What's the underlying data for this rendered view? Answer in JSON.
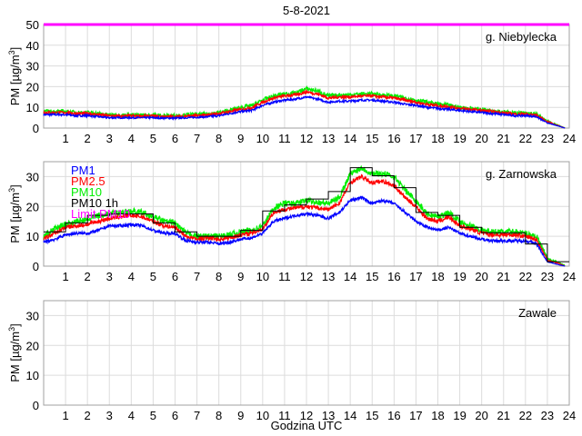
{
  "title": "5-8-2021",
  "xlabel": "Godzina UTC",
  "colors": {
    "PM1": "#0000ff",
    "PM2.5": "#ff0000",
    "PM10": "#00ee00",
    "PM10 1h": "#000000",
    "Limit PM10": "#ff00ff"
  },
  "legend": [
    "PM1",
    "PM2.5",
    "PM10",
    "PM10 1h",
    "Limit PM10"
  ],
  "chart_data": [
    {
      "type": "line",
      "station": "g. Niebylecka",
      "ylabel": "PM [µg/m3]",
      "xlim": [
        0,
        24
      ],
      "ylim": [
        0,
        50
      ],
      "x_ticks": [
        1,
        2,
        3,
        4,
        5,
        6,
        7,
        8,
        9,
        10,
        11,
        12,
        13,
        14,
        15,
        16,
        17,
        18,
        19,
        20,
        21,
        22,
        23,
        24
      ],
      "y_ticks": [
        0,
        10,
        20,
        30,
        40,
        50
      ],
      "grid": true,
      "limit_pm10": 50,
      "x": [
        0,
        0.5,
        1,
        1.5,
        2,
        2.5,
        3,
        3.5,
        4,
        4.5,
        5,
        5.5,
        6,
        6.5,
        7,
        7.5,
        8,
        8.5,
        9,
        9.5,
        10,
        10.5,
        11,
        11.5,
        12,
        12.5,
        13,
        13.5,
        14,
        14.5,
        15,
        15.5,
        16,
        16.5,
        17,
        17.5,
        18,
        18.5,
        19,
        19.5,
        20,
        20.5,
        21,
        21.5,
        22,
        22.5,
        23,
        23.5,
        23.8
      ],
      "series": [
        {
          "name": "PM1",
          "values": [
            6.5,
            6.5,
            6.5,
            6,
            6,
            5.5,
            5,
            5,
            5,
            5,
            5,
            4.8,
            4.8,
            5,
            5.2,
            5.5,
            6,
            7,
            8,
            8.5,
            11,
            12.5,
            13.5,
            14,
            15,
            14,
            12.5,
            13,
            13,
            13.5,
            13.5,
            13,
            12.5,
            11.5,
            11,
            10,
            9.5,
            9,
            8.5,
            8,
            7.5,
            7,
            6.5,
            6,
            6,
            5.5,
            2.5,
            1,
            0
          ]
        },
        {
          "name": "PM2.5",
          "values": [
            7.5,
            7.5,
            7.5,
            7,
            7,
            6.5,
            5.8,
            5.8,
            5.8,
            5.8,
            5.8,
            5.5,
            5.5,
            5.8,
            6,
            6.3,
            7,
            8,
            9,
            9.8,
            12.5,
            14.5,
            15.5,
            16,
            17.5,
            16.5,
            14.5,
            15,
            15,
            15.5,
            15.5,
            15,
            14.5,
            13.5,
            12.5,
            11.5,
            10.8,
            10.3,
            9.5,
            9,
            8.5,
            8,
            7.3,
            6.8,
            6.7,
            6.2,
            3,
            1.2,
            0
          ]
        },
        {
          "name": "PM10",
          "values": [
            8,
            8,
            8,
            7.5,
            7.5,
            7,
            6.3,
            6.3,
            6.3,
            6.3,
            6.3,
            6,
            6,
            6.3,
            6.5,
            6.8,
            7.5,
            8.5,
            10,
            10.8,
            13.5,
            15.5,
            16.5,
            17,
            19,
            18,
            15.5,
            16,
            16,
            16.5,
            16.5,
            16,
            15.5,
            14.5,
            13.5,
            12.5,
            11.5,
            11,
            10,
            9.5,
            9,
            8.5,
            7.8,
            7.3,
            7.2,
            6.6,
            3.2,
            1.3,
            0.1
          ]
        }
      ],
      "pm10_1h": []
    },
    {
      "type": "line",
      "station": "g. Zarnowska",
      "ylabel": "PM [µg/m3]",
      "xlim": [
        0,
        24
      ],
      "ylim": [
        0,
        35
      ],
      "x_ticks": [
        1,
        2,
        3,
        4,
        5,
        6,
        7,
        8,
        9,
        10,
        11,
        12,
        13,
        14,
        15,
        16,
        17,
        18,
        19,
        20,
        21,
        22,
        23,
        24
      ],
      "y_ticks": [
        0,
        10,
        20,
        30
      ],
      "grid": true,
      "legend_position": "top-left",
      "x": [
        0,
        0.5,
        1,
        1.5,
        2,
        2.5,
        3,
        3.5,
        4,
        4.5,
        5,
        5.5,
        6,
        6.5,
        7,
        7.5,
        8,
        8.5,
        9,
        9.5,
        10,
        10.5,
        11,
        11.5,
        12,
        12.5,
        13,
        13.5,
        14,
        14.5,
        15,
        15.5,
        16,
        16.5,
        17,
        17.5,
        18,
        18.5,
        19,
        19.5,
        20,
        20.5,
        21,
        21.5,
        22,
        22.5,
        23,
        23.5,
        23.8
      ],
      "series": [
        {
          "name": "PM1",
          "values": [
            8,
            9,
            10.5,
            11,
            11,
            12,
            13.5,
            13.5,
            14,
            13.5,
            12,
            11,
            11,
            8.5,
            8,
            8,
            7.5,
            8,
            9,
            9.5,
            11,
            15,
            16,
            17,
            17.5,
            17,
            16,
            18,
            22,
            23,
            21,
            22,
            21,
            18,
            15,
            13,
            12,
            13,
            11,
            10,
            9,
            8.5,
            8.5,
            8.5,
            8.5,
            7.5,
            1.5,
            0.5,
            0
          ]
        },
        {
          "name": "PM2.5",
          "values": [
            9,
            11,
            13,
            13.5,
            14,
            15,
            16,
            16.5,
            17,
            16.5,
            15,
            13.5,
            13,
            10,
            9,
            9.5,
            9,
            9.5,
            10.5,
            11,
            12.5,
            18,
            19,
            19.5,
            20,
            19.5,
            19,
            21,
            28,
            30,
            28,
            28.5,
            27,
            23,
            20,
            16,
            15,
            16.5,
            13.5,
            12.5,
            11,
            10.5,
            10.5,
            10.5,
            10,
            9,
            2,
            1,
            0
          ]
        },
        {
          "name": "PM10",
          "values": [
            10,
            12.5,
            14,
            15,
            15.5,
            17,
            17.5,
            18,
            18.5,
            18,
            16.5,
            15,
            14.5,
            11,
            10,
            10,
            10,
            10.5,
            11.5,
            12,
            13.5,
            19.5,
            21,
            21,
            22,
            21.5,
            21,
            23,
            31,
            33,
            31,
            31,
            30,
            25.5,
            22,
            17.5,
            16.5,
            18,
            15,
            13.5,
            12,
            11.5,
            11.5,
            11.5,
            11,
            10,
            2.5,
            1.2,
            0.3
          ]
        }
      ],
      "pm10_1h": [
        11.5,
        14.5,
        17,
        17.5,
        17.5,
        14.5,
        11.5,
        10,
        10,
        12,
        18.5,
        20.5,
        22.5,
        25,
        33,
        30.3,
        26.3,
        18,
        17,
        13,
        11.2,
        11.2,
        7.4,
        1.5
      ]
    },
    {
      "type": "line",
      "station": "Zawale",
      "ylabel": "PM [µg/m3]",
      "xlim": [
        0,
        24
      ],
      "ylim": [
        0,
        35
      ],
      "x_ticks": [
        1,
        2,
        3,
        4,
        5,
        6,
        7,
        8,
        9,
        10,
        11,
        12,
        13,
        14,
        15,
        16,
        17,
        18,
        19,
        20,
        21,
        22,
        23,
        24
      ],
      "y_ticks": [
        0,
        10,
        20,
        30
      ],
      "grid": true,
      "x": [],
      "series": [],
      "pm10_1h": []
    }
  ]
}
